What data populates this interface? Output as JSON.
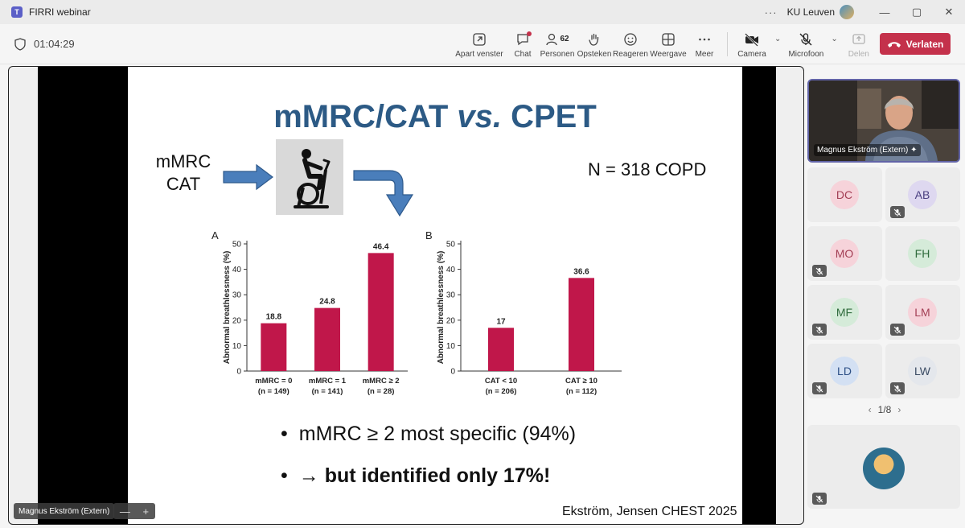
{
  "window": {
    "title": "FIRRI webinar",
    "org": "KU Leuven",
    "dots": "···",
    "minimize": "—",
    "maximize": "▢",
    "close": "✕"
  },
  "meeting": {
    "elapsed": "01:04:29"
  },
  "toolbar": {
    "popout": "Apart venster",
    "chat": "Chat",
    "people": "Personen",
    "people_count": "62",
    "raise_hand": "Opsteken",
    "react": "Reageren",
    "view": "Weergave",
    "more": "Meer",
    "camera": "Camera",
    "mic": "Microfoon",
    "share": "Delen",
    "leave": "Verlaten"
  },
  "slide": {
    "title_part1": "mMRC/CAT ",
    "title_italic": "vs.",
    "title_part2": " CPET",
    "left_label_1": "mMRC",
    "left_label_2": "CAT",
    "n_label": "N = 318 COPD",
    "bullet1": "mMRC ≥ 2 most specific (94%)",
    "bullet2": "→ but identified only 17%!",
    "bullet_dot": "•",
    "reference": "Ekström, Jensen CHEST 2025"
  },
  "chart_data": [
    {
      "type": "bar",
      "panel": "A",
      "ylabel": "Abnormal breathlessness (%)",
      "ylim": [
        0,
        50
      ],
      "yticks": [
        0,
        10,
        20,
        30,
        40,
        50
      ],
      "categories": [
        "mMRC = 0",
        "mMRC = 1",
        "mMRC ≥ 2"
      ],
      "sublabels": [
        "(n = 149)",
        "(n = 141)",
        "(n = 28)"
      ],
      "values": [
        18.8,
        24.8,
        46.4
      ],
      "value_labels": [
        "18.8",
        "24.8",
        "46.4"
      ],
      "color": "#c0174a"
    },
    {
      "type": "bar",
      "panel": "B",
      "ylabel": "Abnormal breathlessness (%)",
      "ylim": [
        0,
        50
      ],
      "yticks": [
        0,
        10,
        20,
        30,
        40,
        50
      ],
      "categories": [
        "CAT < 10",
        "CAT ≥ 10"
      ],
      "sublabels": [
        "(n = 206)",
        "(n = 112)"
      ],
      "values": [
        17,
        36.6
      ],
      "value_labels": [
        "17",
        "36.6"
      ],
      "color": "#c0174a"
    }
  ],
  "stage": {
    "presenter_name": "Magnus Ekström (Extern)",
    "zoom_out": "—",
    "zoom_in": "+"
  },
  "participants": {
    "speaker_name": "Magnus Ekström (Extern)",
    "tiles": [
      {
        "initials": "DC",
        "bg": "#f6d3da",
        "fg": "#a33f55",
        "muted": false
      },
      {
        "initials": "AB",
        "bg": "#ded8f0",
        "fg": "#4a3f80",
        "muted": true
      },
      {
        "initials": "MO",
        "bg": "#f6d3da",
        "fg": "#a33f55",
        "muted": true
      },
      {
        "initials": "FH",
        "bg": "#d5ebd9",
        "fg": "#2f6b3c",
        "muted": false
      },
      {
        "initials": "MF",
        "bg": "#d5ebd9",
        "fg": "#2f6b3c",
        "muted": true
      },
      {
        "initials": "LM",
        "bg": "#f6d3da",
        "fg": "#a33f55",
        "muted": true
      },
      {
        "initials": "LD",
        "bg": "#d3e0f3",
        "fg": "#2c4f86",
        "muted": true
      },
      {
        "initials": "LW",
        "bg": "#e4e7ec",
        "fg": "#3a4b63",
        "muted": true
      }
    ],
    "page": "1/8",
    "prev": "‹",
    "next": "›"
  }
}
